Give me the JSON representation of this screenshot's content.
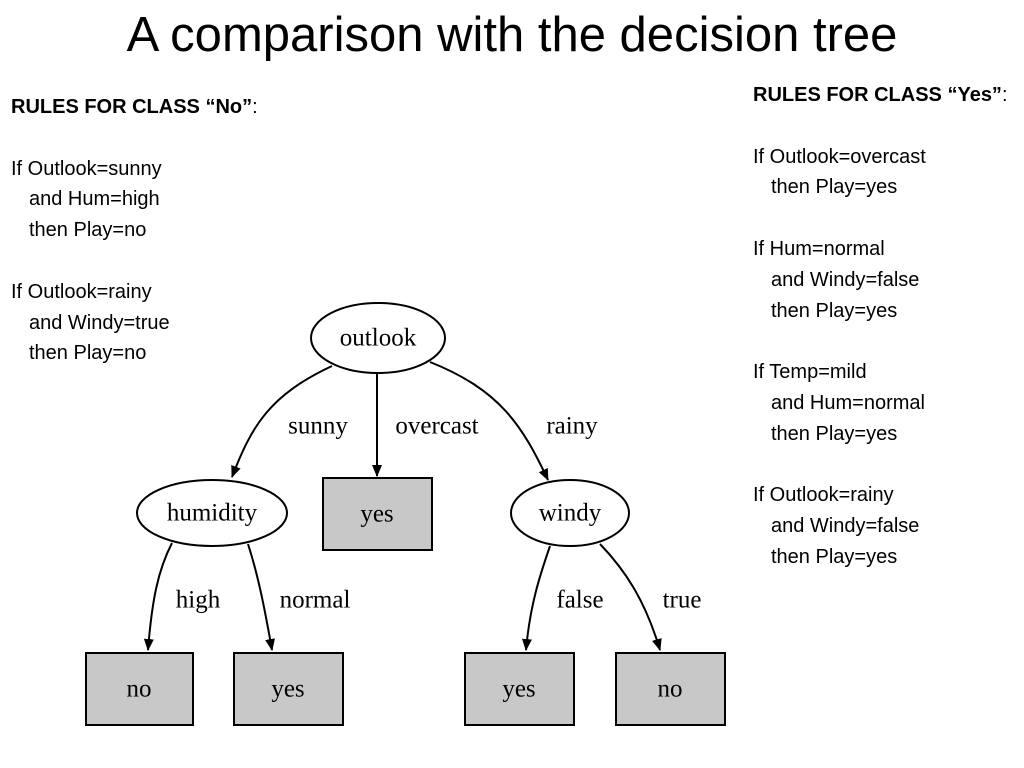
{
  "title": "A comparison with the decision tree",
  "rules_no": {
    "heading": "RULES FOR CLASS “No”",
    "suffix": ":",
    "rules": [
      [
        "If Outlook=sunny",
        "and Hum=high",
        "then Play=no"
      ],
      [
        "If Outlook=rainy",
        "and Windy=true",
        "then Play=no"
      ]
    ]
  },
  "rules_yes": {
    "heading": "RULES FOR CLASS “Yes”",
    "suffix": ":",
    "rules": [
      [
        "If Outlook=overcast",
        "then Play=yes"
      ],
      [
        "If Hum=normal",
        "and Windy=false",
        "then Play=yes"
      ],
      [
        "If Temp=mild",
        "and Hum=normal",
        "then Play=yes"
      ],
      [
        "If Outlook=rainy",
        "and Windy=false",
        "then Play=yes"
      ]
    ]
  },
  "tree": {
    "root": "outlook",
    "root_edges": [
      "sunny",
      "overcast",
      "rainy"
    ],
    "humidity_node": "humidity",
    "overcast_leaf": "yes",
    "windy_node": "windy",
    "humidity_edges": [
      "high",
      "normal"
    ],
    "humidity_leaves": [
      "no",
      "yes"
    ],
    "windy_edges": [
      "false",
      "true"
    ],
    "windy_leaves": [
      "yes",
      "no"
    ],
    "leaf_fill": "#c8c8c8"
  }
}
